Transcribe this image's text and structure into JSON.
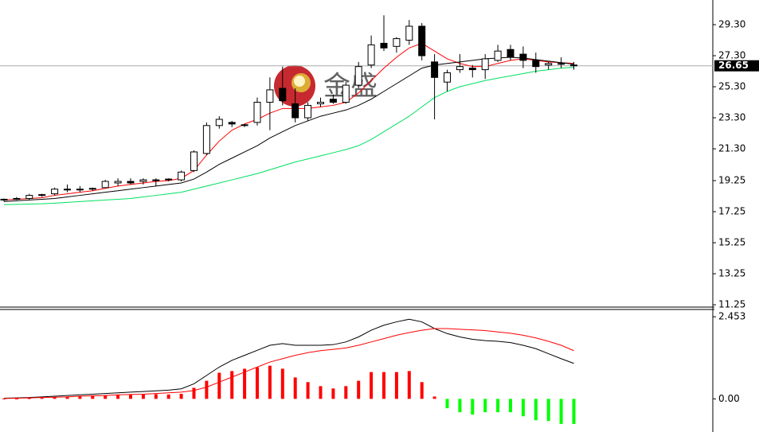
{
  "chart_data": [
    {
      "type": "candlestick",
      "watermark": "金盛",
      "open": [
        18.0,
        18.05,
        18.1,
        18.3,
        18.4,
        18.7,
        18.7,
        18.7,
        18.8,
        19.1,
        19.2,
        19.2,
        19.3,
        19.3,
        19.3,
        19.9,
        21.0,
        22.8,
        23.0,
        22.8,
        23.0,
        24.3,
        25.2,
        24.2,
        23.3,
        24.2,
        24.5,
        24.3,
        25.4,
        26.7,
        28.1,
        27.9,
        28.3,
        29.2,
        26.9,
        25.6,
        26.4,
        26.5,
        26.4,
        27.0,
        27.7,
        27.4,
        27.0,
        26.7,
        26.8,
        26.7
      ],
      "high": [
        18.1,
        18.2,
        18.4,
        18.4,
        18.8,
        19.0,
        18.9,
        18.8,
        19.3,
        19.4,
        19.4,
        19.4,
        19.4,
        19.4,
        19.9,
        21.2,
        23.0,
        23.4,
        23.1,
        22.9,
        24.6,
        25.9,
        26.6,
        25.2,
        24.3,
        24.6,
        24.8,
        25.6,
        26.9,
        28.6,
        29.9,
        28.5,
        29.6,
        29.4,
        27.4,
        26.4,
        27.4,
        26.7,
        27.4,
        28.0,
        28.0,
        27.9,
        27.5,
        26.9,
        27.2,
        26.9
      ],
      "low": [
        17.9,
        18.0,
        18.0,
        18.2,
        18.3,
        18.5,
        18.5,
        18.6,
        18.8,
        18.9,
        19.0,
        19.0,
        18.9,
        19.2,
        19.2,
        19.8,
        20.9,
        22.6,
        22.7,
        22.7,
        22.8,
        22.5,
        24.1,
        23.0,
        23.1,
        24.0,
        24.2,
        24.2,
        25.2,
        26.5,
        27.6,
        27.5,
        28.0,
        27.0,
        23.2,
        25.0,
        26.2,
        25.9,
        25.8,
        26.9,
        27.0,
        26.5,
        26.2,
        26.4,
        26.5,
        26.4
      ],
      "close": [
        18.05,
        18.1,
        18.3,
        18.35,
        18.7,
        18.7,
        18.7,
        18.75,
        19.2,
        19.2,
        19.1,
        19.3,
        19.3,
        19.35,
        19.8,
        21.1,
        22.8,
        23.2,
        22.9,
        22.85,
        24.3,
        25.1,
        24.4,
        23.3,
        24.1,
        24.3,
        24.3,
        25.4,
        26.6,
        28.0,
        27.8,
        28.4,
        29.2,
        27.3,
        25.9,
        26.2,
        26.6,
        26.4,
        27.1,
        27.6,
        27.2,
        27.0,
        26.6,
        26.8,
        26.75,
        26.65
      ],
      "up_color": "#ffffff",
      "down_color": "#000000",
      "series": [
        {
          "color": "#ff0000",
          "values": [
            18.0,
            18.05,
            18.1,
            18.15,
            18.3,
            18.4,
            18.5,
            18.6,
            18.75,
            18.9,
            19.0,
            19.1,
            19.2,
            19.25,
            19.4,
            19.9,
            20.9,
            21.8,
            22.5,
            22.9,
            23.2,
            23.6,
            23.9,
            23.9,
            23.9,
            24.0,
            24.1,
            24.3,
            24.9,
            25.7,
            26.5,
            27.2,
            27.8,
            28.1,
            27.6,
            27.1,
            26.8,
            26.6,
            26.6,
            26.8,
            27.0,
            27.1,
            27.0,
            26.9,
            26.85,
            26.8
          ]
        },
        {
          "color": "#000000",
          "values": [
            17.9,
            17.95,
            18.0,
            18.05,
            18.1,
            18.2,
            18.3,
            18.4,
            18.5,
            18.6,
            18.7,
            18.8,
            18.9,
            19.0,
            19.1,
            19.35,
            19.8,
            20.3,
            20.7,
            21.1,
            21.5,
            22.0,
            22.4,
            22.8,
            23.1,
            23.4,
            23.6,
            23.8,
            24.1,
            24.5,
            25.0,
            25.5,
            26.0,
            26.5,
            26.7,
            26.8,
            26.9,
            27.0,
            27.1,
            27.15,
            27.2,
            27.15,
            27.05,
            26.95,
            26.85,
            26.75
          ]
        },
        {
          "color": "#00e060",
          "values": [
            17.7,
            17.72,
            17.74,
            17.76,
            17.8,
            17.85,
            17.9,
            17.95,
            18.0,
            18.05,
            18.1,
            18.2,
            18.3,
            18.4,
            18.5,
            18.7,
            18.9,
            19.1,
            19.3,
            19.5,
            19.7,
            19.95,
            20.2,
            20.45,
            20.65,
            20.85,
            21.05,
            21.25,
            21.5,
            21.9,
            22.4,
            22.9,
            23.4,
            24.0,
            24.6,
            25.0,
            25.3,
            25.5,
            25.7,
            25.85,
            26.0,
            26.15,
            26.3,
            26.4,
            26.5,
            26.55
          ]
        }
      ],
      "last_price": {
        "value": 26.65,
        "label": "26.65"
      },
      "ylim": [
        11.1,
        30.89
      ],
      "yticks": [
        {
          "value": 29.3,
          "label": "29.30"
        },
        {
          "value": 27.3,
          "label": "27.30"
        },
        {
          "value": 25.3,
          "label": "25.30"
        },
        {
          "value": 23.3,
          "label": "23.30"
        },
        {
          "value": 21.3,
          "label": "21.30"
        },
        19.25,
        17.25,
        15.25,
        13.25,
        11.25
      ]
    },
    {
      "type": "macd",
      "histogram": [
        0.01,
        0.01,
        0.02,
        0.03,
        0.05,
        0.07,
        0.08,
        0.1,
        0.11,
        0.12,
        0.13,
        0.14,
        0.14,
        0.13,
        0.15,
        0.33,
        0.54,
        0.78,
        0.83,
        0.9,
        0.94,
        0.99,
        0.9,
        0.64,
        0.5,
        0.38,
        0.31,
        0.38,
        0.54,
        0.8,
        0.8,
        0.8,
        0.83,
        0.5,
        0.07,
        -0.28,
        -0.4,
        -0.47,
        -0.4,
        -0.4,
        -0.4,
        -0.52,
        -0.64,
        -0.66,
        -0.75,
        -0.75
      ],
      "positive_color": "#ff0000",
      "negative_color": "#00ff00",
      "series": [
        {
          "color": "#000000",
          "values": [
            0.02,
            0.03,
            0.04,
            0.06,
            0.08,
            0.1,
            0.12,
            0.14,
            0.16,
            0.18,
            0.2,
            0.22,
            0.24,
            0.26,
            0.3,
            0.45,
            0.7,
            0.95,
            1.15,
            1.3,
            1.45,
            1.6,
            1.65,
            1.6,
            1.6,
            1.6,
            1.62,
            1.7,
            1.85,
            2.05,
            2.2,
            2.3,
            2.38,
            2.3,
            2.1,
            1.95,
            1.85,
            1.78,
            1.74,
            1.72,
            1.68,
            1.6,
            1.5,
            1.35,
            1.2,
            1.06
          ]
        },
        {
          "color": "#ff0000",
          "values": [
            0.01,
            0.02,
            0.03,
            0.04,
            0.05,
            0.06,
            0.08,
            0.09,
            0.1,
            0.12,
            0.13,
            0.14,
            0.16,
            0.18,
            0.2,
            0.25,
            0.35,
            0.5,
            0.65,
            0.8,
            0.95,
            1.1,
            1.2,
            1.3,
            1.38,
            1.44,
            1.48,
            1.52,
            1.6,
            1.7,
            1.8,
            1.9,
            1.98,
            2.05,
            2.1,
            2.1,
            2.08,
            2.06,
            2.04,
            2.0,
            1.96,
            1.9,
            1.82,
            1.72,
            1.6,
            1.44
          ]
        }
      ],
      "ylim": [
        -0.99,
        2.67
      ],
      "yticks": [
        {
          "value": 0,
          "label": "0.00"
        },
        2.453
      ]
    }
  ]
}
